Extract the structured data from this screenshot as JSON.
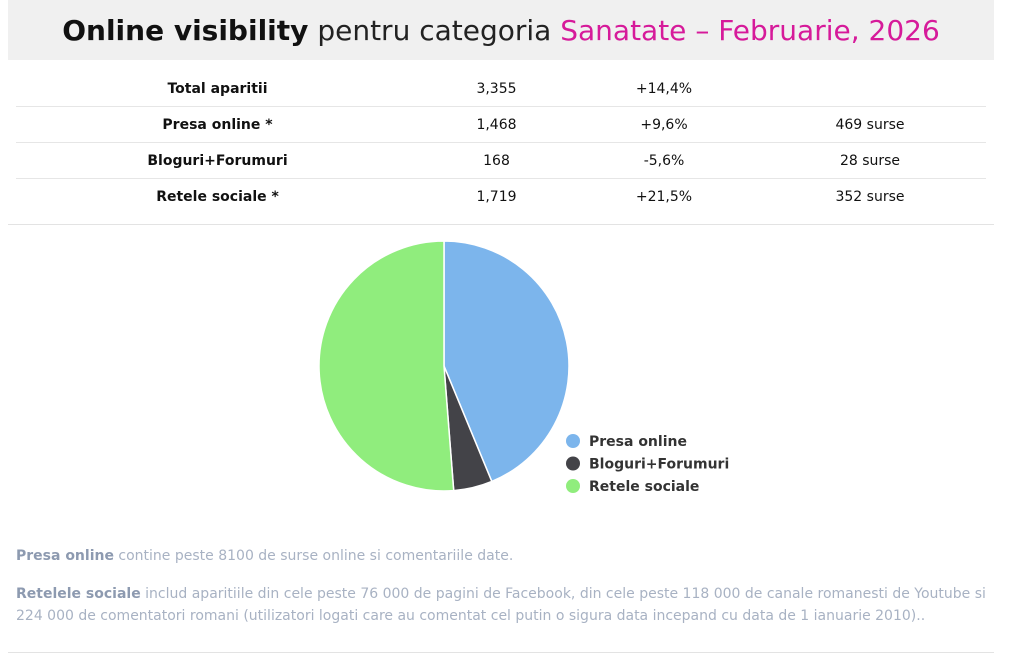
{
  "header": {
    "title_bold": "Online visibility",
    "title_normal": "pentru categoria",
    "title_accent": "Sanatate – Februarie, 2026",
    "accent_color": "#d61a9a"
  },
  "stats": {
    "rows": [
      {
        "label": "Total aparitii",
        "value": "3,355",
        "change": "+14,4%",
        "sources": ""
      },
      {
        "label": "Presa online *",
        "value": "1,468",
        "change": "+9,6%",
        "sources": "469 surse"
      },
      {
        "label": "Bloguri+Forumuri",
        "value": "168",
        "change": "-5,6%",
        "sources": "28 surse"
      },
      {
        "label": "Retele sociale *",
        "value": "1,719",
        "change": "+21,5%",
        "sources": "352 surse"
      }
    ]
  },
  "chart_data": {
    "type": "pie",
    "categories": [
      "Presa online",
      "Bloguri+Forumuri",
      "Retele sociale"
    ],
    "values": [
      1468,
      168,
      1719
    ],
    "colors": [
      "#7cb5ec",
      "#434348",
      "#90ed7d"
    ],
    "legend_position": "right-bottom"
  },
  "notes": {
    "presa": {
      "highlight": "Presa online",
      "text": " contine peste 8100 de surse online si comentariile date."
    },
    "retele": {
      "highlight": "Retelele sociale",
      "text": " includ aparitiile din cele peste 76 000 de pagini de Facebook, din cele peste 118 000 de canale romanesti de Youtube si 224 000 de comentatori romani (utilizatori logati care au comentat cel putin o sigura data incepand cu data de 1 ianuarie 2010).."
    }
  }
}
